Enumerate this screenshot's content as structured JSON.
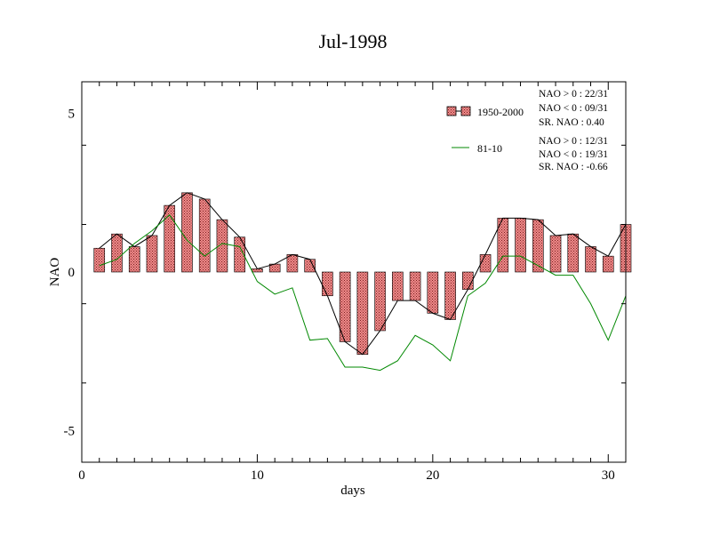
{
  "chart_data": {
    "type": "bar",
    "title": "Jul-1998",
    "xlabel": "days",
    "ylabel": "NAO",
    "xlim": [
      0,
      31
    ],
    "ylim": [
      -6,
      6
    ],
    "xticks": [
      0,
      10,
      20,
      30
    ],
    "yticks": [
      -5,
      0,
      5
    ],
    "x": [
      1,
      2,
      3,
      4,
      5,
      6,
      7,
      8,
      9,
      10,
      11,
      12,
      13,
      14,
      15,
      16,
      17,
      18,
      19,
      20,
      21,
      22,
      23,
      24,
      25,
      26,
      27,
      28,
      29,
      30,
      31
    ],
    "series": [
      {
        "name": "1950-2000",
        "kind": "bar",
        "bar_color": "#e07070",
        "values": [
          0.75,
          1.2,
          0.8,
          1.15,
          2.1,
          2.5,
          2.3,
          1.65,
          1.1,
          0.1,
          0.25,
          0.55,
          0.4,
          -0.75,
          -2.2,
          -2.6,
          -1.85,
          -0.9,
          -0.9,
          -1.3,
          -1.5,
          -0.55,
          0.55,
          1.7,
          1.7,
          1.65,
          1.15,
          1.2,
          0.8,
          0.5,
          1.5
        ]
      },
      {
        "name": "81-10",
        "kind": "line",
        "color": "#008800",
        "values": [
          0.2,
          0.4,
          0.9,
          1.3,
          1.8,
          1.0,
          0.5,
          0.9,
          0.8,
          -0.3,
          -0.7,
          -0.5,
          -2.15,
          -2.1,
          -3.0,
          -3.0,
          -3.1,
          -2.8,
          -2.0,
          -2.3,
          -2.8,
          -0.75,
          -0.35,
          0.5,
          0.5,
          0.2,
          -0.1,
          -0.1,
          -1.0,
          -2.15,
          -0.75
        ]
      }
    ],
    "legend_placement": "top-right",
    "grid": false
  },
  "stats_1950_2000": [
    "NAO > 0 : 22/31",
    "NAO < 0 : 09/31",
    "SR. NAO :  0.40"
  ],
  "stats_81_10": [
    "NAO > 0 : 12/31",
    "NAO < 0 : 19/31",
    "SR. NAO : -0.66"
  ]
}
